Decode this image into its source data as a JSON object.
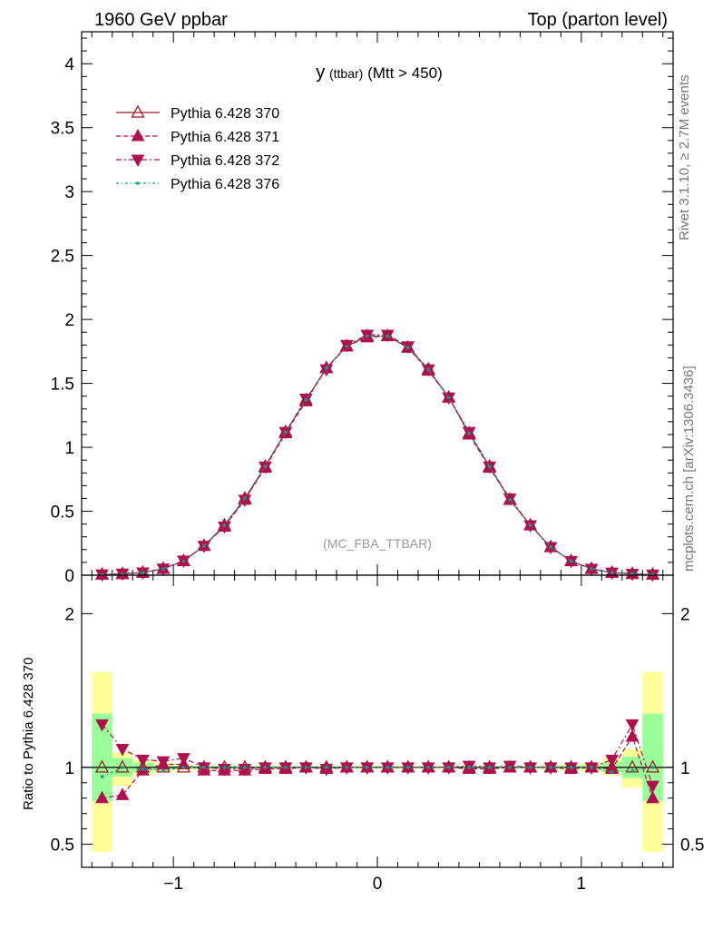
{
  "header": {
    "left": "1960 GeV ppbar",
    "right": "Top (parton level)"
  },
  "side_labels": {
    "rivet": "Rivet 3.1.10, ≥ 2.7M events",
    "mcplots": "mcplots.cern.ch [arXiv:1306.3436]"
  },
  "plot_title": {
    "main": "y",
    "sub": "(ttbar)",
    "rest": "(Mtt > 450)"
  },
  "analysis_tag": "(MC_FBA_TTBAR)",
  "ratio_ylabel": "Ratio to Pythia 6.428 370",
  "colors": {
    "s370": "#9b1b1b",
    "s371": "#b0104f",
    "s372": "#b0104f",
    "s376": "#1a9a8a",
    "band_yellow": "#ffff99",
    "band_green": "#99ff99"
  },
  "chart_data": [
    {
      "type": "line",
      "panel": "main",
      "xlim": [
        -1.45,
        1.45
      ],
      "ylim": [
        0,
        4.25
      ],
      "yticks": [
        0,
        0.5,
        1,
        1.5,
        2,
        2.5,
        3,
        3.5,
        4
      ],
      "ytick_labels": [
        "0",
        "0.5",
        "1",
        "1.5",
        "2",
        "2.5",
        "3",
        "3.5",
        "4"
      ],
      "x": [
        -1.35,
        -1.25,
        -1.15,
        -1.05,
        -0.95,
        -0.85,
        -0.75,
        -0.65,
        -0.55,
        -0.45,
        -0.35,
        -0.25,
        -0.15,
        -0.05,
        0.05,
        0.15,
        0.25,
        0.35,
        0.45,
        0.55,
        0.65,
        0.75,
        0.85,
        0.95,
        1.05,
        1.15,
        1.25,
        1.35
      ],
      "series": [
        {
          "name": "Pythia 6.428 370",
          "values": [
            0.005,
            0.01,
            0.02,
            0.05,
            0.11,
            0.23,
            0.39,
            0.6,
            0.85,
            1.12,
            1.37,
            1.62,
            1.79,
            1.87,
            1.87,
            1.78,
            1.61,
            1.39,
            1.11,
            0.85,
            0.59,
            0.39,
            0.22,
            0.11,
            0.05,
            0.02,
            0.01,
            0.005
          ]
        },
        {
          "name": "Pythia 6.428 371",
          "values": [
            0.004,
            0.008,
            0.02,
            0.05,
            0.11,
            0.23,
            0.38,
            0.59,
            0.84,
            1.11,
            1.36,
            1.62,
            1.79,
            1.86,
            1.87,
            1.78,
            1.6,
            1.39,
            1.1,
            0.84,
            0.59,
            0.39,
            0.22,
            0.11,
            0.05,
            0.02,
            0.012,
            0.004
          ]
        },
        {
          "name": "Pythia 6.428 372",
          "values": [
            0.006,
            0.012,
            0.021,
            0.051,
            0.114,
            0.23,
            0.38,
            0.59,
            0.85,
            1.12,
            1.38,
            1.61,
            1.8,
            1.88,
            1.88,
            1.79,
            1.61,
            1.39,
            1.12,
            0.85,
            0.6,
            0.39,
            0.22,
            0.11,
            0.05,
            0.02,
            0.011,
            0.004
          ]
        },
        {
          "name": "Pythia 6.428 376",
          "values": [
            0.005,
            0.01,
            0.02,
            0.049,
            0.11,
            0.23,
            0.39,
            0.6,
            0.85,
            1.12,
            1.37,
            1.62,
            1.79,
            1.87,
            1.87,
            1.78,
            1.61,
            1.39,
            1.11,
            0.85,
            0.59,
            0.39,
            0.22,
            0.11,
            0.05,
            0.02,
            0.01,
            0.005
          ]
        }
      ]
    },
    {
      "type": "line",
      "panel": "ratio",
      "xlim": [
        -1.45,
        1.45
      ],
      "ylim": [
        0.35,
        2.25
      ],
      "yticks": [
        0.5,
        1,
        2
      ],
      "ytick_labels": [
        "0.5",
        "1",
        "2"
      ],
      "xticks": [
        -1,
        0,
        1
      ],
      "xtick_labels": [
        "−1",
        "0",
        "1"
      ],
      "ylabel": "Ratio to Pythia 6.428 370",
      "x": [
        -1.35,
        -1.25,
        -1.15,
        -1.05,
        -0.95,
        -0.85,
        -0.75,
        -0.65,
        -0.55,
        -0.45,
        -0.35,
        -0.25,
        -0.15,
        -0.05,
        0.05,
        0.15,
        0.25,
        0.35,
        0.45,
        0.55,
        0.65,
        0.75,
        0.85,
        0.95,
        1.05,
        1.15,
        1.25,
        1.35
      ],
      "band": {
        "yellow_lo": [
          0.45,
          0.88,
          0.95,
          0.97,
          0.98,
          0.985,
          0.99,
          0.99,
          0.99,
          0.99,
          0.99,
          0.99,
          0.99,
          0.99,
          0.99,
          0.99,
          0.99,
          0.99,
          0.99,
          0.99,
          0.99,
          0.99,
          0.985,
          0.98,
          0.97,
          0.95,
          0.87,
          0.45
        ],
        "yellow_hi": [
          1.62,
          1.1,
          1.05,
          1.03,
          1.02,
          1.015,
          1.01,
          1.01,
          1.01,
          1.01,
          1.01,
          1.01,
          1.01,
          1.01,
          1.01,
          1.01,
          1.01,
          1.01,
          1.01,
          1.01,
          1.01,
          1.01,
          1.015,
          1.02,
          1.03,
          1.06,
          1.12,
          1.62
        ],
        "green_lo": [
          0.78,
          0.94,
          0.97,
          0.985,
          0.99,
          0.99,
          0.995,
          0.995,
          0.995,
          0.995,
          0.995,
          0.995,
          0.995,
          0.995,
          0.995,
          0.995,
          0.995,
          0.995,
          0.995,
          0.995,
          0.995,
          0.995,
          0.99,
          0.99,
          0.985,
          0.97,
          0.93,
          0.78
        ],
        "green_hi": [
          1.35,
          1.06,
          1.03,
          1.015,
          1.01,
          1.01,
          1.005,
          1.005,
          1.005,
          1.005,
          1.005,
          1.005,
          1.005,
          1.005,
          1.005,
          1.005,
          1.005,
          1.005,
          1.005,
          1.005,
          1.005,
          1.005,
          1.01,
          1.01,
          1.015,
          1.035,
          1.07,
          1.35
        ]
      },
      "series": [
        {
          "name": "Pythia 6.428 370",
          "values": [
            1,
            1,
            1,
            1,
            1,
            1,
            1,
            1,
            1,
            1,
            1,
            1,
            1,
            1,
            1,
            1,
            1,
            1,
            1,
            1,
            1,
            1,
            1,
            1,
            1,
            1,
            1,
            1
          ]
        },
        {
          "name": "Pythia 6.428 371",
          "values": [
            0.8,
            0.82,
            0.98,
            1.02,
            1.02,
            0.98,
            0.98,
            0.98,
            0.99,
            0.99,
            1.0,
            0.99,
            1.0,
            1.0,
            1.0,
            1.0,
            1.0,
            1.0,
            0.99,
            0.99,
            1.0,
            1.0,
            1.0,
            0.99,
            1.0,
            0.99,
            1.2,
            0.8
          ]
        },
        {
          "name": "Pythia 6.428 372",
          "values": [
            1.28,
            1.12,
            1.05,
            1.04,
            1.06,
            1.0,
            0.99,
            0.99,
            1.0,
            1.0,
            1.0,
            0.99,
            1.0,
            1.0,
            1.0,
            1.0,
            1.0,
            1.0,
            1.01,
            1.0,
            1.01,
            1.0,
            1.0,
            1.0,
            1.0,
            1.05,
            1.28,
            0.88
          ]
        },
        {
          "name": "Pythia 6.428 376",
          "values": [
            0.94,
            1.0,
            0.99,
            0.98,
            1.0,
            1.0,
            1.0,
            1.0,
            1.0,
            1.0,
            1.0,
            1.0,
            1.0,
            1.0,
            1.0,
            1.0,
            1.0,
            1.0,
            1.0,
            1.0,
            1.0,
            1.0,
            1.0,
            1.0,
            1.0,
            0.97,
            0.98,
            1.0
          ]
        }
      ]
    }
  ]
}
